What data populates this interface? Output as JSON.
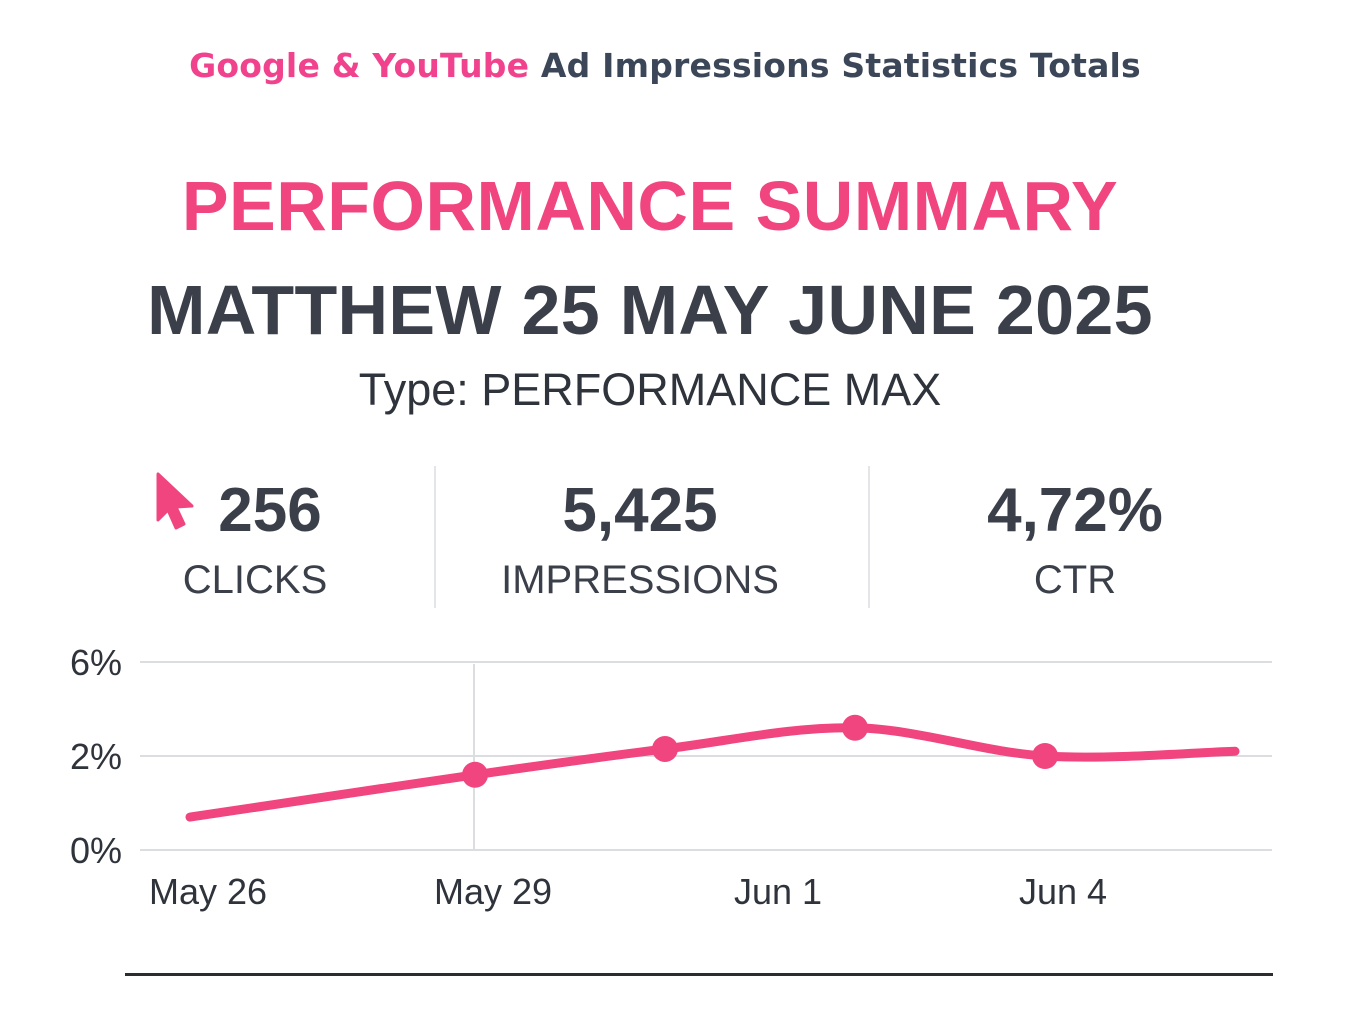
{
  "header": {
    "title_brand": "Google & YouTube",
    "title_rest": "Ad Impressions Statistics Totals"
  },
  "summary": {
    "title": "PERFORMANCE SUMMARY",
    "subtitle": "MATTHEW 25 MAY JUNE 2025",
    "type_line": "Type: PERFORMANCE MAX"
  },
  "stats": {
    "clicks": {
      "value": "256",
      "label": "CLICKS",
      "icon": "cursor-arrow-icon"
    },
    "impressions": {
      "value": "5,425",
      "label": "IMPRESSIONS"
    },
    "ctr": {
      "value": "4,72%",
      "label": "CTR"
    }
  },
  "colors": {
    "accent": "#f0457f",
    "text": "#3a3f49",
    "grid": "#dcdde0"
  },
  "chart_data": {
    "type": "line",
    "x_ticks": [
      "May 26",
      "May 29",
      "Jun 1",
      "Jun 4"
    ],
    "y_ticks": [
      "0%",
      "2%",
      "6%"
    ],
    "grid": true,
    "series": [
      {
        "points": [
          {
            "x": "2025-05-26",
            "y": 0.7
          },
          {
            "x": "2025-05-29",
            "y": 1.6
          },
          {
            "x": "2025-05-31",
            "y": 2.3
          },
          {
            "x": "2025-06-02",
            "y": 3.2
          },
          {
            "x": "2025-06-04",
            "y": 2.0
          },
          {
            "x": "2025-06-06",
            "y": 2.2
          }
        ],
        "markers": [
          "2025-05-29",
          "2025-05-31",
          "2025-06-02",
          "2025-06-04"
        ]
      }
    ]
  }
}
